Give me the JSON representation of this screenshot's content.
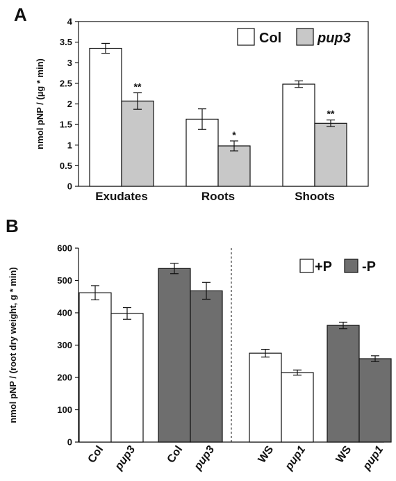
{
  "chart_data": [
    {
      "panel": "A",
      "type": "bar",
      "ylabel": "nmol pNP / (µg * min)",
      "ylim": [
        0,
        4
      ],
      "yticks": [
        "0",
        "0.5",
        "1",
        "1.5",
        "2",
        "2.5",
        "3",
        "3.5",
        "4"
      ],
      "categories": [
        "Exudates",
        "Roots",
        "Shoots"
      ],
      "series": [
        {
          "name": "Col",
          "color": "#ffffff",
          "values": [
            3.35,
            1.63,
            2.48
          ],
          "errors": [
            0.12,
            0.25,
            0.08
          ],
          "marks": [
            "",
            "",
            ""
          ]
        },
        {
          "name": "pup3",
          "color": "#c8c8c8",
          "values": [
            2.07,
            0.98,
            1.53
          ],
          "errors": [
            0.2,
            0.12,
            0.08
          ],
          "marks": [
            "**",
            "*",
            "**"
          ]
        }
      ],
      "legend": "top-right"
    },
    {
      "panel": "B",
      "type": "bar",
      "ylabel": "nmol pNP / (root dry weight, g * min)",
      "ylim": [
        0,
        600
      ],
      "yticks": [
        "0",
        "100",
        "200",
        "300",
        "400",
        "500",
        "600"
      ],
      "categories": [
        "Col",
        "pup3",
        "Col",
        "pup3",
        "WS",
        "pup1",
        "WS",
        "pup1"
      ],
      "series": [
        {
          "name": "+P",
          "color": "#ffffff"
        },
        {
          "name": "-P",
          "color": "#6e6e6e"
        }
      ],
      "bars": [
        {
          "value": 462,
          "error": 22,
          "series": 0
        },
        {
          "value": 398,
          "error": 18,
          "series": 0
        },
        {
          "value": 537,
          "error": 16,
          "series": 1
        },
        {
          "value": 468,
          "error": 26,
          "series": 1
        },
        {
          "value": 275,
          "error": 12,
          "series": 0
        },
        {
          "value": 215,
          "error": 8,
          "series": 0
        },
        {
          "value": 361,
          "error": 10,
          "series": 1
        },
        {
          "value": 258,
          "error": 9,
          "series": 1
        }
      ],
      "legend": "top-right"
    }
  ]
}
